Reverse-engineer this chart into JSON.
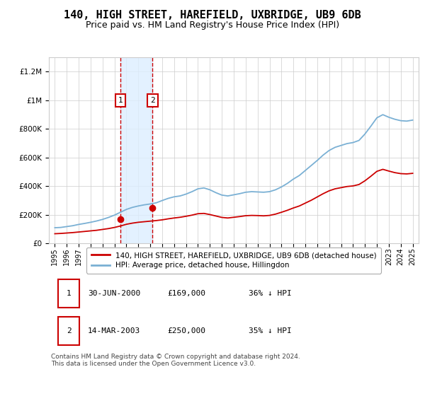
{
  "title": "140, HIGH STREET, HAREFIELD, UXBRIDGE, UB9 6DB",
  "subtitle": "Price paid vs. HM Land Registry's House Price Index (HPI)",
  "title_fontsize": 11,
  "subtitle_fontsize": 9,
  "background_color": "#ffffff",
  "plot_bg_color": "#ffffff",
  "grid_color": "#cccccc",
  "legend_line1": "140, HIGH STREET, HAREFIELD, UXBRIDGE, UB9 6DB (detached house)",
  "legend_line2": "HPI: Average price, detached house, Hillingdon",
  "red_color": "#cc0000",
  "blue_color": "#7ab0d4",
  "shaded_region_color": "#ddeeff",
  "footer": "Contains HM Land Registry data © Crown copyright and database right 2024.\nThis data is licensed under the Open Government Licence v3.0.",
  "sale1_label": "1",
  "sale1_date": "30-JUN-2000",
  "sale1_price": "£169,000",
  "sale1_hpi": "36% ↓ HPI",
  "sale2_label": "2",
  "sale2_date": "14-MAR-2003",
  "sale2_price": "£250,000",
  "sale2_hpi": "35% ↓ HPI",
  "ylim": [
    0,
    1300000
  ],
  "yticks": [
    0,
    200000,
    400000,
    600000,
    800000,
    1000000,
    1200000
  ],
  "ytick_labels": [
    "£0",
    "£200K",
    "£400K",
    "£600K",
    "£800K",
    "£1M",
    "£1.2M"
  ],
  "sale1_x": 2000.5,
  "sale1_y": 169000,
  "sale2_x": 2003.2,
  "sale2_y": 250000,
  "shade_x1": 2000.5,
  "shade_x2": 2003.2,
  "hpi_years": [
    1995.0,
    1995.5,
    1996.0,
    1996.5,
    1997.0,
    1997.5,
    1998.0,
    1998.5,
    1999.0,
    1999.5,
    2000.0,
    2000.5,
    2001.0,
    2001.5,
    2002.0,
    2002.5,
    2003.0,
    2003.5,
    2004.0,
    2004.5,
    2005.0,
    2005.5,
    2006.0,
    2006.5,
    2007.0,
    2007.5,
    2008.0,
    2008.5,
    2009.0,
    2009.5,
    2010.0,
    2010.5,
    2011.0,
    2011.5,
    2012.0,
    2012.5,
    2013.0,
    2013.5,
    2014.0,
    2014.5,
    2015.0,
    2015.5,
    2016.0,
    2016.5,
    2017.0,
    2017.5,
    2018.0,
    2018.5,
    2019.0,
    2019.5,
    2020.0,
    2020.5,
    2021.0,
    2021.5,
    2022.0,
    2022.5,
    2023.0,
    2023.5,
    2024.0,
    2024.5,
    2025.0
  ],
  "hpi_values": [
    110000,
    112000,
    118000,
    124000,
    133000,
    140000,
    148000,
    157000,
    168000,
    182000,
    198000,
    218000,
    238000,
    252000,
    262000,
    270000,
    276000,
    284000,
    300000,
    315000,
    326000,
    332000,
    345000,
    362000,
    382000,
    388000,
    375000,
    355000,
    338000,
    332000,
    340000,
    348000,
    358000,
    362000,
    360000,
    358000,
    362000,
    375000,
    395000,
    420000,
    450000,
    475000,
    510000,
    545000,
    580000,
    618000,
    650000,
    672000,
    685000,
    698000,
    705000,
    720000,
    765000,
    820000,
    878000,
    900000,
    882000,
    868000,
    858000,
    855000,
    862000
  ],
  "red_years": [
    1995.0,
    1995.5,
    1996.0,
    1996.5,
    1997.0,
    1997.5,
    1998.0,
    1998.5,
    1999.0,
    1999.5,
    2000.0,
    2000.5,
    2001.0,
    2001.5,
    2002.0,
    2002.5,
    2003.0,
    2003.5,
    2004.0,
    2004.5,
    2005.0,
    2005.5,
    2006.0,
    2006.5,
    2007.0,
    2007.5,
    2008.0,
    2008.5,
    2009.0,
    2009.5,
    2010.0,
    2010.5,
    2011.0,
    2011.5,
    2012.0,
    2012.5,
    2013.0,
    2013.5,
    2014.0,
    2014.5,
    2015.0,
    2015.5,
    2016.0,
    2016.5,
    2017.0,
    2017.5,
    2018.0,
    2018.5,
    2019.0,
    2019.5,
    2020.0,
    2020.5,
    2021.0,
    2021.5,
    2022.0,
    2022.5,
    2023.0,
    2023.5,
    2024.0,
    2024.5,
    2025.0
  ],
  "red_values": [
    68000,
    70000,
    73000,
    76000,
    80000,
    84000,
    88000,
    92000,
    98000,
    104000,
    112000,
    122000,
    134000,
    142000,
    148000,
    152000,
    156000,
    160000,
    165000,
    172000,
    178000,
    183000,
    190000,
    198000,
    208000,
    210000,
    202000,
    192000,
    182000,
    178000,
    183000,
    188000,
    194000,
    196000,
    195000,
    193000,
    196000,
    205000,
    218000,
    232000,
    248000,
    262000,
    282000,
    302000,
    325000,
    348000,
    368000,
    382000,
    390000,
    398000,
    402000,
    412000,
    438000,
    470000,
    504000,
    518000,
    506000,
    495000,
    488000,
    486000,
    490000
  ],
  "xtick_years": [
    1995,
    1996,
    1997,
    1998,
    1999,
    2000,
    2001,
    2002,
    2003,
    2004,
    2005,
    2006,
    2007,
    2008,
    2009,
    2010,
    2011,
    2012,
    2013,
    2014,
    2015,
    2016,
    2017,
    2018,
    2019,
    2020,
    2021,
    2022,
    2023,
    2024,
    2025
  ],
  "xlim": [
    1994.5,
    2025.5
  ]
}
